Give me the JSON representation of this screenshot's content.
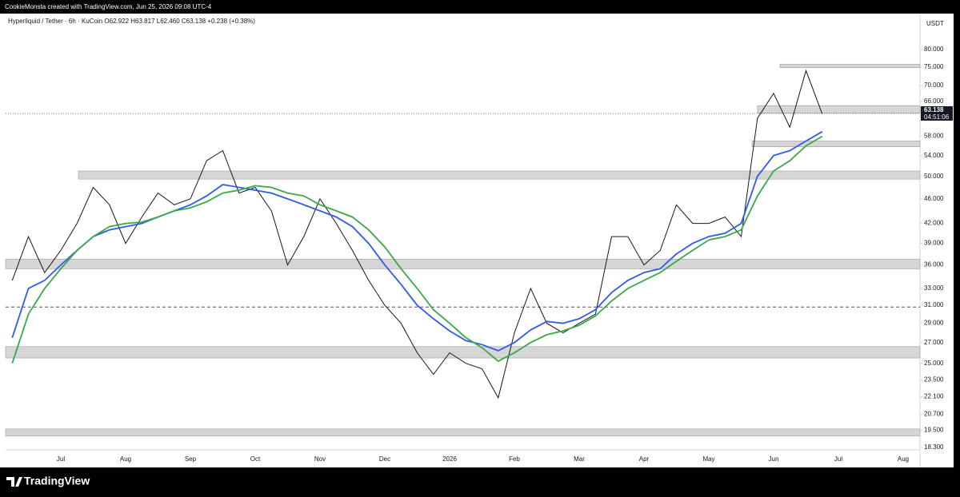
{
  "watermark": "CookieMonsta created with TradingView.com, Jun 25, 2026 09:08 UTC-4",
  "brand": "TradingView",
  "chart_data": {
    "type": "line",
    "title": "Hyperliquid / Tether · 6h · KuCoin  O62.922  H63.817  L62.460  C63.138  +0.238 (+0.38%)",
    "currency": "USDT",
    "log_scale": true,
    "grid": false,
    "categories": [
      null,
      null,
      null,
      "Jul",
      null,
      null,
      null,
      "Aug",
      null,
      null,
      null,
      "Sep",
      null,
      null,
      null,
      "Oct",
      null,
      null,
      null,
      "Nov",
      null,
      null,
      null,
      "Dec",
      null,
      null,
      null,
      "2026",
      null,
      null,
      null,
      "Feb",
      null,
      null,
      null,
      "Mar",
      null,
      null,
      null,
      "Apr",
      null,
      null,
      null,
      "May",
      null,
      null,
      null,
      "Jun",
      null,
      null,
      null,
      "Jul",
      null,
      null,
      null,
      "Aug"
    ],
    "series": [
      {
        "color": "#131722",
        "values": [
          34,
          40,
          35,
          38,
          42,
          48,
          45,
          39,
          43,
          47,
          45,
          46,
          53,
          55,
          47,
          48,
          44,
          36,
          40,
          46,
          42,
          38,
          34,
          31,
          29,
          26,
          24,
          26,
          25,
          24.5,
          22,
          28,
          33,
          29,
          28,
          29,
          30,
          40,
          40,
          36,
          38,
          45,
          42,
          42,
          43,
          40,
          62,
          68,
          60,
          74,
          63,
          null,
          null,
          null,
          null,
          null
        ]
      },
      {
        "color": "#2f5bea",
        "values": [
          27.5,
          33,
          34,
          36,
          38,
          40,
          41,
          41.5,
          42,
          43,
          44,
          45,
          46.5,
          48.5,
          48,
          47.5,
          47,
          46,
          45,
          44,
          43,
          41.5,
          39,
          36,
          33.5,
          31,
          29.5,
          28.2,
          27.2,
          26.8,
          26.2,
          27,
          28.3,
          29.2,
          29,
          29.5,
          30.5,
          32.5,
          34,
          35,
          35.5,
          37.5,
          39,
          40,
          40.5,
          42,
          50,
          54,
          55,
          57,
          59,
          null,
          null,
          null,
          null,
          null
        ]
      },
      {
        "color": "#3aa84a",
        "values": [
          25,
          30,
          33,
          35.5,
          38,
          40,
          41.5,
          42,
          42.2,
          43,
          44,
          44.5,
          45.5,
          47,
          47.5,
          48.3,
          48,
          47,
          46.5,
          45,
          44,
          43,
          41,
          38.5,
          35.5,
          33,
          30.5,
          29,
          27.5,
          26.5,
          25.2,
          26,
          27,
          27.8,
          28.2,
          28.8,
          29.8,
          31.5,
          33,
          34,
          35,
          36.5,
          38,
          39.5,
          40,
          41,
          46.5,
          51,
          53,
          56,
          58,
          null,
          null,
          null,
          null,
          null
        ]
      }
    ],
    "ylim": [
      17.25,
      85.4
    ],
    "yticks": [
      {
        "value": 80,
        "label": "80.000"
      },
      {
        "value": 75,
        "label": "75.000"
      },
      {
        "value": 70,
        "label": "70.000"
      },
      {
        "value": 66,
        "label": "66.000"
      },
      {
        "value": 58,
        "label": "58.000"
      },
      {
        "value": 54,
        "label": "54.000"
      },
      {
        "value": 50,
        "label": "50.000"
      },
      {
        "value": 46,
        "label": "46.000"
      },
      {
        "value": 42,
        "label": "42.000"
      },
      {
        "value": 39,
        "label": "39.000"
      },
      {
        "value": 36,
        "label": "36.000"
      },
      {
        "value": 33,
        "label": "33.000"
      },
      {
        "value": 31,
        "label": "31.000"
      },
      {
        "value": 29,
        "label": "29.000"
      },
      {
        "value": 27,
        "label": "27.000"
      },
      {
        "value": 25,
        "label": "25.000"
      },
      {
        "value": 23.5,
        "label": "23.500"
      },
      {
        "value": 22.1,
        "label": "22.100"
      },
      {
        "value": 20.7,
        "label": "20.700"
      },
      {
        "value": 19.5,
        "label": "19.500"
      },
      {
        "value": 18.3,
        "label": "18.300"
      }
    ],
    "zones": [
      {
        "low": 74.8,
        "high": 75.8
      },
      {
        "low": 63.2,
        "high": 65
      },
      {
        "low": 55.8,
        "high": 57
      },
      {
        "low": 49.5,
        "high": 51
      },
      {
        "low": 35.5,
        "high": 36.8
      },
      {
        "low": 25.5,
        "high": 26.6
      },
      {
        "low": 19.1,
        "high": 19.6
      }
    ],
    "hline": 30.8,
    "last_price": 63.138,
    "countdown": "04:51:06"
  }
}
